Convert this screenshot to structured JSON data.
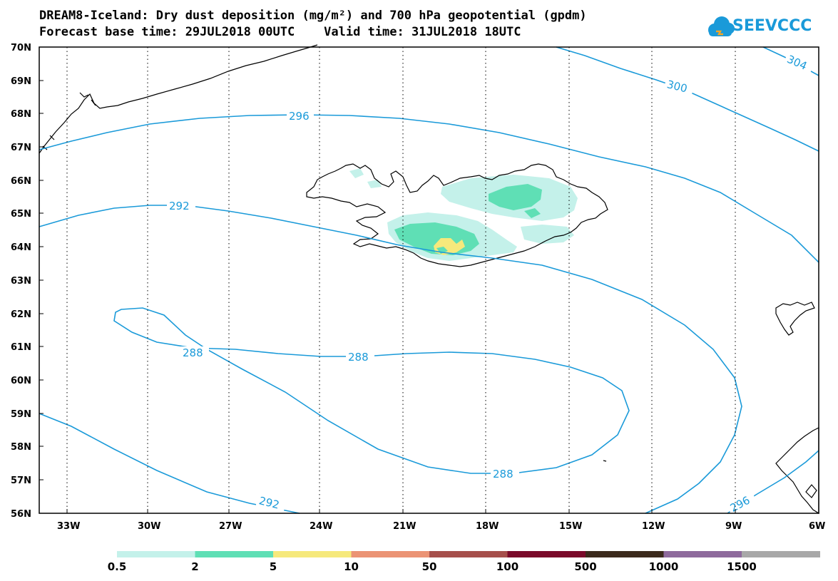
{
  "header": {
    "title_line1": "DREAM8-Iceland: Dry dust deposition (mg/m²) and 700 hPa geopotential (gpdm)",
    "title_line2": "Forecast base time: 29JUL2018 00UTC    Valid time: 31JUL2018 18UTC"
  },
  "logo": {
    "text": "SEEVCCC",
    "icon": "cloud-icon",
    "color": "#1a9ad9"
  },
  "map": {
    "lat_labels": [
      "70N",
      "69N",
      "68N",
      "67N",
      "66N",
      "65N",
      "64N",
      "63N",
      "62N",
      "61N",
      "60N",
      "59N",
      "58N",
      "57N",
      "56N"
    ],
    "lon_labels": [
      "33W",
      "30W",
      "27W",
      "24W",
      "21W",
      "18W",
      "15W",
      "12W",
      "9W",
      "6W"
    ],
    "contour_color": "#1a9ad9",
    "contour_labels": [
      "296",
      "300",
      "304",
      "292",
      "288",
      "288",
      "288",
      "292",
      "296"
    ]
  },
  "legend": {
    "colors": [
      "#c4f1ea",
      "#5fdfb5",
      "#f6e97c",
      "#eb9374",
      "#a64f4b",
      "#7a0a2a",
      "#3b2a1c",
      "#8e6a9c",
      "#a8a8a8"
    ],
    "labels": [
      "0.5",
      "2",
      "5",
      "10",
      "50",
      "100",
      "500",
      "1000",
      "1500"
    ]
  }
}
